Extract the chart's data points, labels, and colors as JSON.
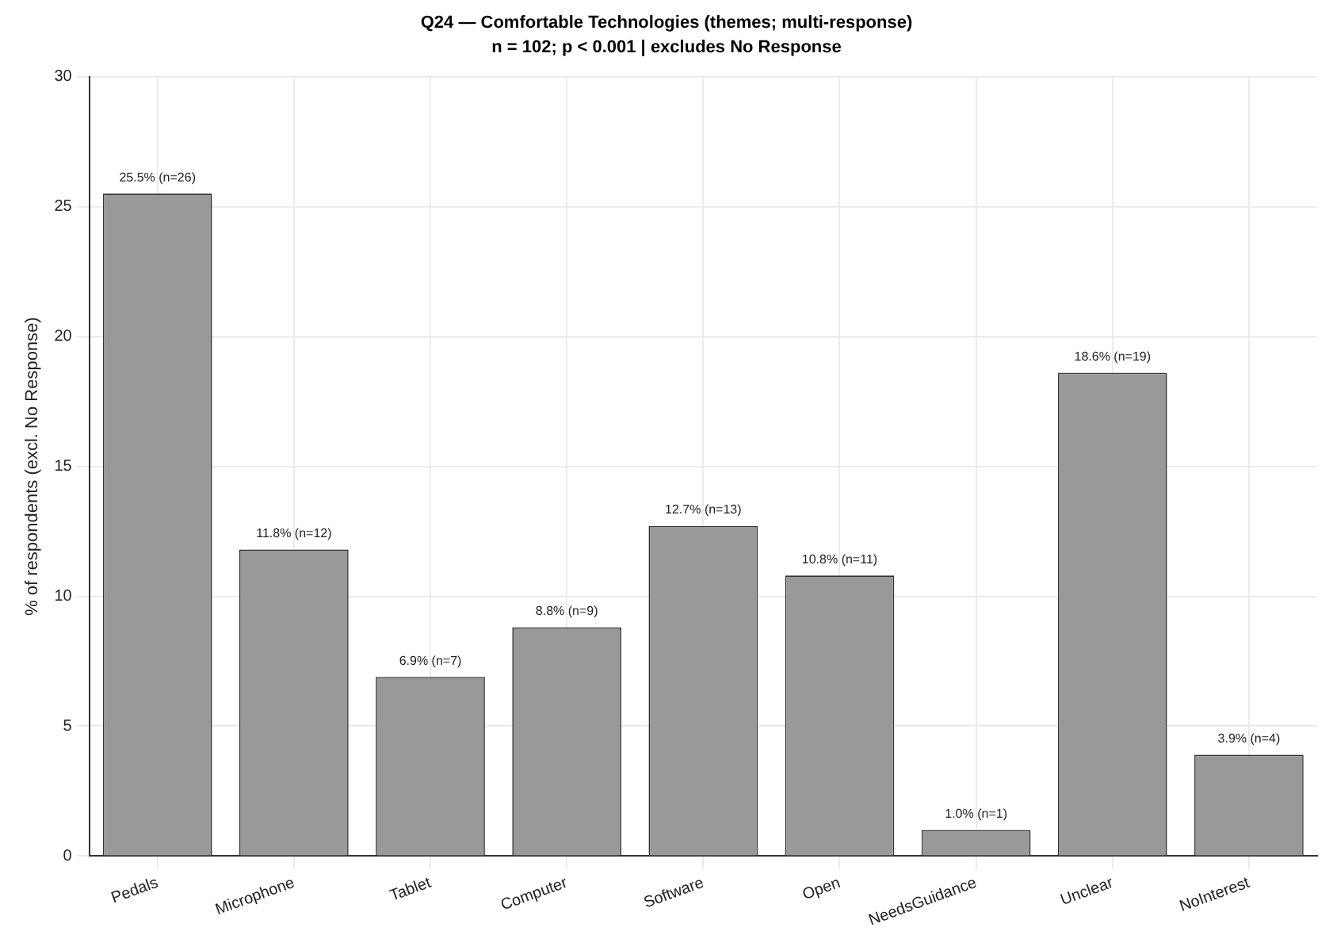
{
  "chart_data": {
    "type": "bar",
    "title": "Q24 — Comfortable Technologies (themes; multi-response)",
    "subtitle": "n = 102; p < 0.001 | excludes No Response",
    "ylabel": "% of respondents (excl. No Response)",
    "categories": [
      "Pedals",
      "Microphone",
      "Tablet",
      "Computer",
      "Software",
      "Open",
      "NeedsGuidance",
      "Unclear",
      "NoInterest"
    ],
    "values": [
      25.5,
      11.8,
      6.9,
      8.8,
      12.7,
      10.8,
      1.0,
      18.6,
      3.9
    ],
    "value_labels": [
      "25.5% (n=26)",
      "11.8% (n=12)",
      "6.9% (n=7)",
      "8.8% (n=9)",
      "12.7% (n=13)",
      "10.8% (n=11)",
      "1.0% (n=1)",
      "18.6% (n=19)",
      "3.9% (n=4)"
    ],
    "color": "#999999",
    "ylim": [
      0,
      30
    ],
    "yticks": [
      0,
      5,
      10,
      15,
      20,
      25,
      30
    ],
    "grid": true
  }
}
